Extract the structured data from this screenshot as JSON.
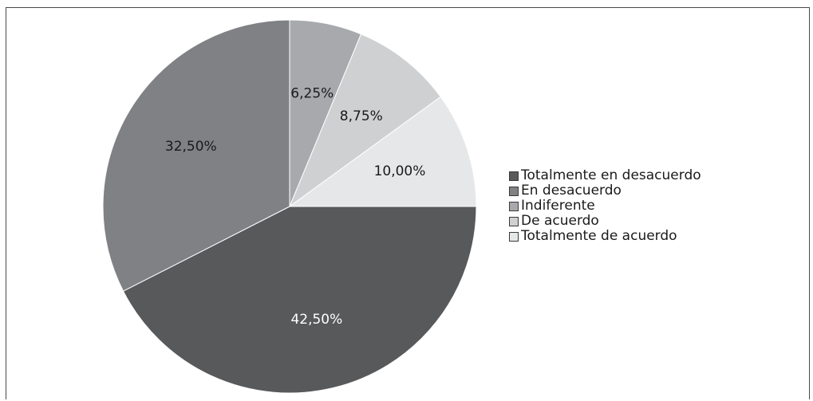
{
  "chart_data": {
    "type": "pie",
    "categories": [
      "Totalmente en desacuerdo",
      "En desacuerdo",
      "Indiferente",
      "De acuerdo",
      "Totalmente de acuerdo"
    ],
    "values": [
      42.5,
      32.5,
      6.25,
      8.75,
      10.0
    ],
    "value_labels": [
      "42,50%",
      "32,50%",
      "6,25%",
      "8,75%",
      "10,00%"
    ],
    "slice_order_clockwise_from_top": [
      "Indiferente",
      "De acuerdo",
      "Totalmente de acuerdo",
      "Totalmente en desacuerdo",
      "En desacuerdo"
    ],
    "colors": {
      "Totalmente en desacuerdo": "#58595b",
      "En desacuerdo": "#808184",
      "Indiferente": "#a7a9ac",
      "De acuerdo": "#cfd0d2",
      "Totalmente de acuerdo": "#e6e7e8"
    },
    "label_colors": {
      "Totalmente en desacuerdo": "#ffffff",
      "En desacuerdo": "#1a1a1a",
      "Indiferente": "#1a1a1a",
      "De acuerdo": "#1a1a1a",
      "Totalmente de acuerdo": "#1a1a1a"
    },
    "legend_position": "right"
  }
}
